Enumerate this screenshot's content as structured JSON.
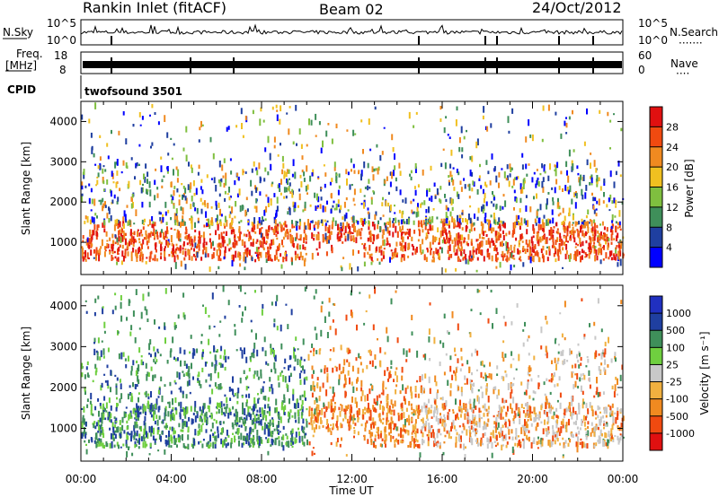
{
  "header": {
    "station": "Rankin Inlet (fitACF)",
    "beam": "Beam 02",
    "date": "24/Oct/2012"
  },
  "top_panels": {
    "nsky_label": "N.Sky",
    "nsky_ticks": [
      "10^5",
      "10^0"
    ],
    "nsearch_label": "N.Search",
    "nsearch_ticks": [
      "10^5",
      "10^0"
    ],
    "freq_label_line1": "Freq.",
    "freq_label_line2": "[MHz]",
    "freq_ticks": [
      "18",
      "8"
    ],
    "nave_label": "Nave",
    "nave_ticks": [
      "60",
      "0"
    ],
    "cpid_label": "CPID",
    "cpid_value": "twofsound 3501"
  },
  "colors": {
    "power_scale": [
      "#0000ff",
      "#1f3fa0",
      "#3f8f5a",
      "#7fbf3f",
      "#f0c020",
      "#f08a20",
      "#f04a10",
      "#e01010"
    ],
    "velocity_scale": [
      "#e01010",
      "#f04a10",
      "#f08a20",
      "#f0b040",
      "#c8c8c8",
      "#6fcf3f",
      "#3f8f5a",
      "#1f3fa0",
      "#2030c0"
    ],
    "axes": "#000000"
  },
  "chart_data": [
    {
      "type": "heatmap",
      "panel": "power",
      "ylabel": "Slant Range [km]",
      "yticks": [
        "1000",
        "2000",
        "3000",
        "4000"
      ],
      "ylim": [
        200,
        4500
      ],
      "xticks": [
        "00:00",
        "04:00",
        "08:00",
        "12:00",
        "16:00",
        "20:00",
        "00:00"
      ],
      "xlim_hours": [
        0,
        24
      ],
      "colorbar_label": "Power [dB]",
      "colorbar_ticks": [
        "4",
        "8",
        "12",
        "16",
        "20",
        "24",
        "28"
      ]
    },
    {
      "type": "heatmap",
      "panel": "velocity",
      "ylabel": "Slant Range [km]",
      "yticks": [
        "1000",
        "2000",
        "3000",
        "4000"
      ],
      "ylim": [
        200,
        4500
      ],
      "xticks": [
        "00:00",
        "04:00",
        "08:00",
        "12:00",
        "16:00",
        "20:00",
        "00:00"
      ],
      "xlim_hours": [
        0,
        24
      ],
      "xlabel": "Time UT",
      "colorbar_label": "Velocity [m s⁻¹]",
      "colorbar_ticks": [
        "1000",
        "500",
        "100",
        "25",
        "-25",
        "-100",
        "-500",
        "-1000"
      ]
    }
  ]
}
